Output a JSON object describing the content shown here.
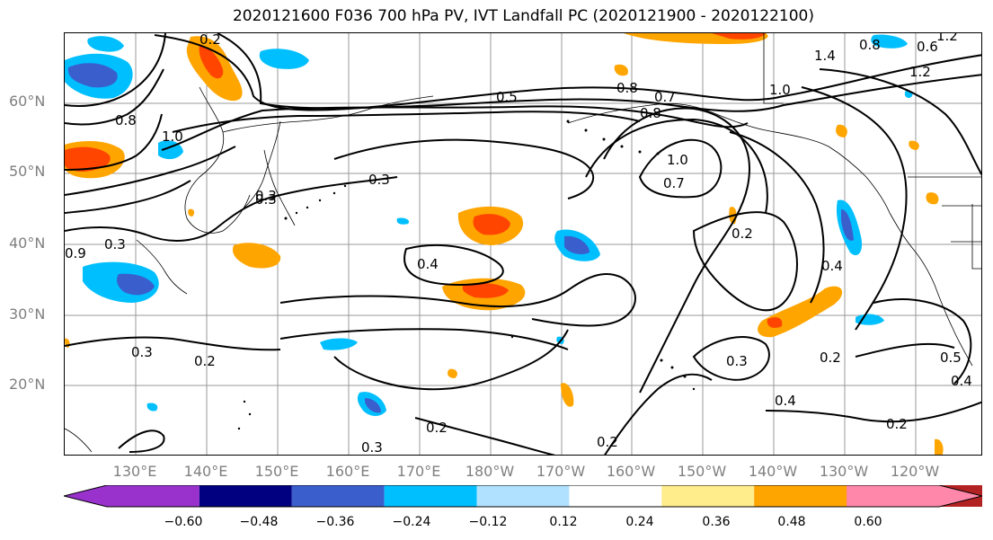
{
  "title": "2020121600 F036 700 hPa PV, IVT Landfall PC (2020121900 - 2020122100)",
  "lat_labels": [
    "60°N",
    "50°N",
    "40°N",
    "30°N",
    "20°N"
  ],
  "lon_labels": [
    "130°E",
    "140°E",
    "150°E",
    "160°E",
    "170°E",
    "180°W",
    "170°W",
    "160°W",
    "150°W",
    "140°W",
    "130°W",
    "120°W"
  ],
  "contour_labels": [
    "0.2",
    "0.8",
    "0.5",
    "0.8",
    "0.7",
    "1.0",
    "1.4",
    "1.2",
    "0.8",
    "0.3",
    "1.0",
    "0.3",
    "0.4",
    "1.0",
    "0.7",
    "0.2",
    "0.4",
    "0.3",
    "0.2",
    "0.2",
    "0.3",
    "0.3",
    "0.4",
    "0.2",
    "0.2",
    "0.5",
    "0.3",
    "0.6",
    "0.8",
    "0.9",
    "0.3",
    "0.4",
    "0.2",
    "1.2"
  ],
  "colorbar": {
    "colors": [
      "#9932cc",
      "#000080",
      "#3a5fcd",
      "#00bfff",
      "#b0e2ff",
      "#ffffff",
      "#ffec8b",
      "#ffa500",
      "#ff4500",
      "#b22222",
      "#ff88aa"
    ],
    "ticks": [
      "−0.60",
      "−0.48",
      "−0.36",
      "−0.24",
      "−0.12",
      "0.12",
      "0.24",
      "0.36",
      "0.48",
      "0.60"
    ]
  }
}
